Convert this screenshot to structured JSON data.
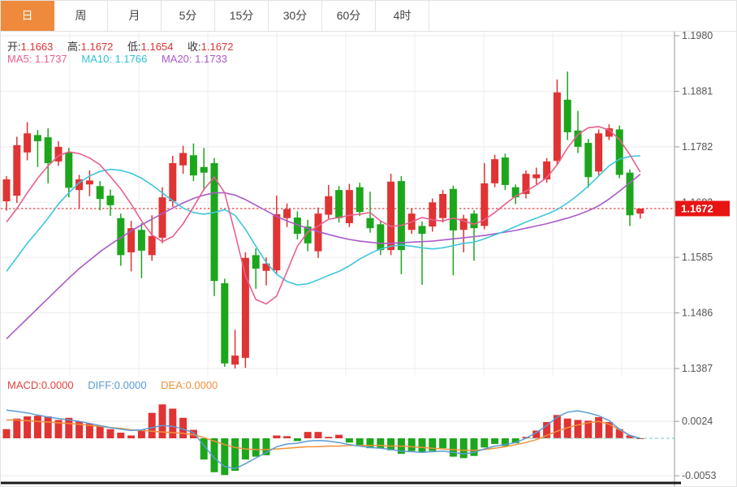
{
  "tabs": {
    "items": [
      {
        "label": "日",
        "active": true
      },
      {
        "label": "周",
        "active": false
      },
      {
        "label": "月",
        "active": false
      },
      {
        "label": "5分",
        "active": false
      },
      {
        "label": "15分",
        "active": false
      },
      {
        "label": "30分",
        "active": false
      },
      {
        "label": "60分",
        "active": false
      },
      {
        "label": "4时",
        "active": false
      }
    ]
  },
  "legend": {
    "ohlc": {
      "o_label": "开:",
      "o": "1.1663",
      "h_label": "高:",
      "h": "1.1672",
      "l_label": "低:",
      "l": "1.1654",
      "c_label": "收:",
      "c": "1.1672"
    },
    "ma": {
      "ma5_label": "MA5:",
      "ma5_value": "1.1737",
      "ma10_label": "MA10:",
      "ma10_value": "1.1766",
      "ma20_label": "MA20:",
      "ma20_value": "1.1733"
    },
    "macd": {
      "macd_label": "MACD:",
      "macd_value": "0.0000",
      "diff_label": "DIFF:",
      "diff_value": "0.0000",
      "dea_label": "DEA:",
      "dea_value": "0.0000"
    }
  },
  "colors": {
    "up": "#e03333",
    "down": "#1ca61c",
    "ma5": "#e8608e",
    "ma10": "#3ec6dd",
    "ma20": "#ab5bc8",
    "diff": "#5b9bd5",
    "dea": "#f0913a",
    "grid": "#ececec",
    "axis": "#999999",
    "tick_text": "#555555",
    "tab_active_bg": "#ef8a3c",
    "price_tag_bg": "#e81414",
    "dotted_line": "#e03333",
    "zero_dash": "#8fd3d3",
    "panel_divider": "#1a1a1a"
  },
  "chart_data": [
    {
      "type": "candlestick",
      "title": "",
      "ylim": [
        1.1387,
        1.198
      ],
      "y_ticks": [
        1.198,
        1.1881,
        1.1782,
        1.1683,
        1.1585,
        1.1486,
        1.1387
      ],
      "current_price": 1.1672,
      "price_tag_label": "1.1672",
      "x_start": 7,
      "x_step": 12.8,
      "legend_position": "top-left",
      "grid": true,
      "candles": [
        [
          1.1685,
          1.173,
          1.1668,
          1.1724
        ],
        [
          1.1695,
          1.18,
          1.1682,
          1.1785
        ],
        [
          1.1772,
          1.1826,
          1.1758,
          1.1806
        ],
        [
          1.1803,
          1.1812,
          1.1746,
          1.1792
        ],
        [
          1.1799,
          1.1815,
          1.1717,
          1.1753
        ],
        [
          1.1756,
          1.1792,
          1.1748,
          1.1782
        ],
        [
          1.1772,
          1.178,
          1.1692,
          1.1709
        ],
        [
          1.1705,
          1.1732,
          1.1672,
          1.1724
        ],
        [
          1.1715,
          1.174,
          1.1694,
          1.1722
        ],
        [
          1.1712,
          1.1721,
          1.1669,
          1.1689
        ],
        [
          1.1695,
          1.1706,
          1.1659,
          1.1678
        ],
        [
          1.1655,
          1.1663,
          1.157,
          1.1589
        ],
        [
          1.1594,
          1.165,
          1.156,
          1.1637
        ],
        [
          1.1634,
          1.1646,
          1.1548,
          1.1597
        ],
        [
          1.1589,
          1.166,
          1.1579,
          1.1623
        ],
        [
          1.162,
          1.171,
          1.161,
          1.1692
        ],
        [
          1.1685,
          1.1766,
          1.1675,
          1.1753
        ],
        [
          1.1749,
          1.1784,
          1.1734,
          1.1771
        ],
        [
          1.1767,
          1.1788,
          1.1721,
          1.1731
        ],
        [
          1.1746,
          1.178,
          1.1704,
          1.1736
        ],
        [
          1.1753,
          1.1762,
          1.1516,
          1.1543
        ],
        [
          1.1539,
          1.1547,
          1.139,
          1.1396
        ],
        [
          1.1394,
          1.1456,
          1.1387,
          1.141
        ],
        [
          1.1406,
          1.1594,
          1.1388,
          1.1584
        ],
        [
          1.1589,
          1.1601,
          1.1529,
          1.1565
        ],
        [
          1.1561,
          1.1585,
          1.1535,
          1.1574
        ],
        [
          1.1562,
          1.1695,
          1.1554,
          1.1662
        ],
        [
          1.1655,
          1.1681,
          1.1639,
          1.1671
        ],
        [
          1.1656,
          1.1667,
          1.1617,
          1.1627
        ],
        [
          1.164,
          1.1652,
          1.1596,
          1.161
        ],
        [
          1.1596,
          1.1674,
          1.1584,
          1.1663
        ],
        [
          1.1661,
          1.1714,
          1.1654,
          1.1694
        ],
        [
          1.1705,
          1.1712,
          1.1647,
          1.1655
        ],
        [
          1.1646,
          1.1716,
          1.1639,
          1.1705
        ],
        [
          1.171,
          1.1718,
          1.1659,
          1.1666
        ],
        [
          1.1655,
          1.1702,
          1.1629,
          1.1637
        ],
        [
          1.1644,
          1.1651,
          1.1589,
          1.1598
        ],
        [
          1.1598,
          1.1734,
          1.1589,
          1.172
        ],
        [
          1.1721,
          1.173,
          1.1555,
          1.1598
        ],
        [
          1.1634,
          1.1671,
          1.1627,
          1.1663
        ],
        [
          1.1641,
          1.1649,
          1.1536,
          1.1627
        ],
        [
          1.164,
          1.169,
          1.1631,
          1.1683
        ],
        [
          1.1655,
          1.1705,
          1.1647,
          1.1698
        ],
        [
          1.1707,
          1.1713,
          1.1553,
          1.1633
        ],
        [
          1.1634,
          1.1661,
          1.1594,
          1.1654
        ],
        [
          1.1663,
          1.1669,
          1.1579,
          1.1637
        ],
        [
          1.1641,
          1.1753,
          1.1635,
          1.1717
        ],
        [
          1.1717,
          1.1768,
          1.171,
          1.176
        ],
        [
          1.1763,
          1.177,
          1.1705,
          1.1714
        ],
        [
          1.171,
          1.1715,
          1.168,
          1.1692
        ],
        [
          1.1698,
          1.174,
          1.169,
          1.1734
        ],
        [
          1.1726,
          1.1745,
          1.1715,
          1.1733
        ],
        [
          1.1724,
          1.1762,
          1.1718,
          1.1756
        ],
        [
          1.1757,
          1.1902,
          1.175,
          1.1879
        ],
        [
          1.1866,
          1.1916,
          1.1794,
          1.1808
        ],
        [
          1.1811,
          1.1846,
          1.1771,
          1.1782
        ],
        [
          1.1789,
          1.1796,
          1.1709,
          1.1728
        ],
        [
          1.1738,
          1.1813,
          1.1731,
          1.1806
        ],
        [
          1.18,
          1.1822,
          1.1794,
          1.1815
        ],
        [
          1.1813,
          1.182,
          1.1726,
          1.1732
        ],
        [
          1.1736,
          1.1742,
          1.1641,
          1.166
        ],
        [
          1.1663,
          1.1672,
          1.1654,
          1.1672
        ]
      ],
      "ma5": [
        1.1648,
        1.1672,
        1.17,
        1.1726,
        1.1748,
        1.1766,
        1.1773,
        1.177,
        1.1762,
        1.175,
        1.1729,
        1.1707,
        1.168,
        1.165,
        1.1625,
        1.1613,
        1.1622,
        1.1645,
        1.1675,
        1.1706,
        1.1728,
        1.17,
        1.1628,
        1.1552,
        1.151,
        1.1502,
        1.1516,
        1.156,
        1.1605,
        1.163,
        1.1641,
        1.1653,
        1.1656,
        1.166,
        1.1662,
        1.1665,
        1.165,
        1.164,
        1.1642,
        1.1648,
        1.1656,
        1.1652,
        1.165,
        1.1655,
        1.165,
        1.1644,
        1.1652,
        1.1665,
        1.168,
        1.1694,
        1.1703,
        1.1714,
        1.1727,
        1.175,
        1.178,
        1.1804,
        1.1816,
        1.1818,
        1.1812,
        1.1795,
        1.1768,
        1.1737
      ],
      "ma10": [
        1.156,
        1.1585,
        1.161,
        1.1632,
        1.1655,
        1.168,
        1.17,
        1.1718,
        1.173,
        1.1738,
        1.1742,
        1.174,
        1.1735,
        1.1726,
        1.1714,
        1.17,
        1.1686,
        1.1673,
        1.1665,
        1.1662,
        1.1665,
        1.167,
        1.166,
        1.1635,
        1.1605,
        1.1576,
        1.1555,
        1.1542,
        1.1536,
        1.1538,
        1.1545,
        1.1553,
        1.156,
        1.157,
        1.1582,
        1.1592,
        1.16,
        1.1605,
        1.1607,
        1.1605,
        1.1602,
        1.16,
        1.1602,
        1.1606,
        1.161,
        1.1612,
        1.1618,
        1.1625,
        1.1632,
        1.164,
        1.1648,
        1.1655,
        1.1662,
        1.167,
        1.1682,
        1.1696,
        1.1712,
        1.173,
        1.1748,
        1.176,
        1.1765,
        1.1766
      ],
      "ma20": [
        1.144,
        1.1458,
        1.1476,
        1.1494,
        1.1512,
        1.153,
        1.1548,
        1.1565,
        1.158,
        1.1595,
        1.1608,
        1.162,
        1.1632,
        1.1643,
        1.1653,
        1.1663,
        1.1673,
        1.1682,
        1.169,
        1.1696,
        1.17,
        1.17,
        1.1696,
        1.1688,
        1.1678,
        1.1668,
        1.1658,
        1.165,
        1.1643,
        1.1637,
        1.1631,
        1.1626,
        1.1621,
        1.1617,
        1.1614,
        1.1612,
        1.161,
        1.161,
        1.1611,
        1.1612,
        1.1613,
        1.1614,
        1.1616,
        1.1618,
        1.162,
        1.1622,
        1.1624,
        1.1627,
        1.163,
        1.1633,
        1.1637,
        1.1641,
        1.1645,
        1.165,
        1.1655,
        1.1661,
        1.1668,
        1.1677,
        1.1689,
        1.1703,
        1.1718,
        1.1733
      ]
    },
    {
      "type": "bar",
      "title": "MACD",
      "y_ticks": [
        0.0024,
        -0.0053
      ],
      "zero_value": 0,
      "x_start": 7,
      "x_step": 12.8,
      "macd": [
        0.0013,
        0.0028,
        0.0031,
        0.0032,
        0.0031,
        0.0026,
        0.0029,
        0.0024,
        0.0021,
        0.0017,
        0.0013,
        0.0008,
        0.0004,
        0.0012,
        0.0036,
        0.0048,
        0.0042,
        0.0029,
        0.0012,
        -0.003,
        -0.0048,
        -0.0052,
        -0.0046,
        -0.003,
        -0.0026,
        -0.0024,
        0.0004,
        0.0003,
        -0.0004,
        0.0009,
        0.0009,
        0.0002,
        0.0005,
        -0.0006,
        -0.0011,
        -0.0014,
        -0.0014,
        -0.0017,
        -0.0022,
        -0.0018,
        -0.002,
        -0.0018,
        -0.0014,
        -0.0026,
        -0.0028,
        -0.0025,
        -0.0013,
        -0.0008,
        -0.0011,
        -0.0007,
        0.0002,
        0.0011,
        0.0023,
        0.0033,
        0.0028,
        0.0026,
        0.0025,
        0.003,
        0.0023,
        0.0013,
        0.0004,
        0.0
      ],
      "diff": [
        0.004,
        0.0038,
        0.0036,
        0.0033,
        0.003,
        0.0028,
        0.0026,
        0.0024,
        0.0021,
        0.0018,
        0.0015,
        0.0013,
        0.0011,
        0.0012,
        0.0015,
        0.0018,
        0.0017,
        0.0013,
        0.0008,
        -0.001,
        -0.0028,
        -0.004,
        -0.0043,
        -0.0036,
        -0.0028,
        -0.002,
        -0.0012,
        -0.0008,
        -0.0007,
        -0.0004,
        -0.0003,
        -0.0004,
        -0.0006,
        -0.0009,
        -0.0011,
        -0.0013,
        -0.0014,
        -0.0016,
        -0.0018,
        -0.0019,
        -0.002,
        -0.0019,
        -0.0018,
        -0.002,
        -0.0022,
        -0.002,
        -0.0015,
        -0.0011,
        -0.0009,
        -0.0006,
        0.0,
        0.0008,
        0.0018,
        0.003,
        0.0037,
        0.0039,
        0.0036,
        0.0032,
        0.0025,
        0.0013,
        0.0004,
        0.0
      ],
      "dea": [
        0.0026,
        0.0026,
        0.0025,
        0.0024,
        0.0023,
        0.0022,
        0.0021,
        0.002,
        0.0018,
        0.0017,
        0.0015,
        0.0014,
        0.0012,
        0.0011,
        0.001,
        0.0009,
        0.0008,
        0.0007,
        0.0005,
        0.0001,
        -0.0004,
        -0.0009,
        -0.0013,
        -0.0015,
        -0.0016,
        -0.0016,
        -0.0015,
        -0.0014,
        -0.0013,
        -0.0012,
        -0.0012,
        -0.0011,
        -0.0011,
        -0.001,
        -0.001,
        -0.001,
        -0.001,
        -0.0011,
        -0.0011,
        -0.0012,
        -0.0013,
        -0.0014,
        -0.0015,
        -0.0016,
        -0.0017,
        -0.0017,
        -0.0016,
        -0.0014,
        -0.0012,
        -0.0009,
        -0.0006,
        -0.0002,
        0.0004,
        0.001,
        0.0015,
        0.0019,
        0.0022,
        0.0024,
        0.002,
        0.0012,
        0.0004,
        0.0
      ]
    }
  ]
}
